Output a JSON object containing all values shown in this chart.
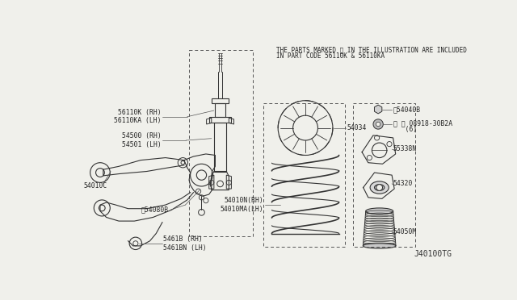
{
  "background_color": "#f0f0eb",
  "fig_width": 6.4,
  "fig_height": 3.72,
  "dpi": 100,
  "note_line1": "THE PARTS MARKED ※ IN THE ILLUSTRATION ARE INCLUDED",
  "note_line2": "IN PART CODE 56110K & 56110KA",
  "diagram_id": "J40100TG",
  "ec": "#333333",
  "lw": 0.8
}
